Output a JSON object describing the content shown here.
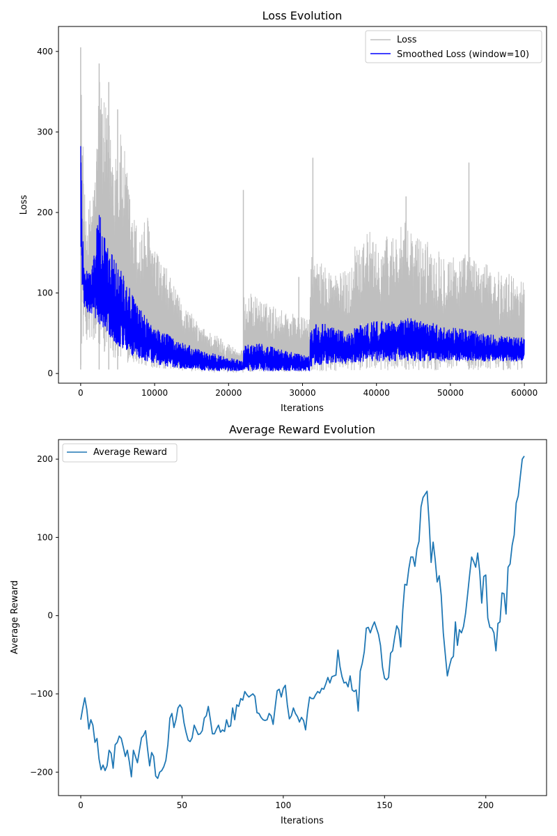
{
  "chart_data": [
    {
      "type": "line",
      "title": "Loss Evolution",
      "xlabel": "Iterations",
      "ylabel": "Loss",
      "xlim": [
        -3000,
        63000
      ],
      "ylim": [
        -12,
        431
      ],
      "xticks": [
        0,
        10000,
        20000,
        30000,
        40000,
        50000,
        60000
      ],
      "yticks": [
        0,
        100,
        200,
        300,
        400
      ],
      "grid": false,
      "legend_position": "top-right",
      "x_range_of_data": [
        0,
        60000
      ],
      "series": [
        {
          "name": "Loss",
          "color": "#bfbfbf",
          "envelope_x": [
            0,
            200,
            500,
            1000,
            1500,
            2000,
            2500,
            3000,
            3500,
            4000,
            4500,
            5000,
            5500,
            6000,
            7000,
            8000,
            9000,
            10000,
            11000,
            12000,
            13000,
            14000,
            15000,
            16000,
            17000,
            18000,
            19000,
            20000,
            21000,
            21999,
            22000,
            23000,
            24000,
            25000,
            26000,
            27000,
            28000,
            29000,
            30000,
            30999,
            31000,
            31500,
            32000,
            33000,
            34000,
            35000,
            36000,
            36999,
            37000,
            38000,
            39000,
            40000,
            41000,
            42000,
            43000,
            44000,
            45000,
            46000,
            47000,
            48000,
            49000,
            50000,
            51000,
            52000,
            53000,
            54000,
            55000,
            56000,
            57000,
            58000,
            59000,
            60000
          ],
          "envelope_high": [
            395,
            330,
            225,
            200,
            240,
            250,
            385,
            340,
            330,
            310,
            300,
            290,
            300,
            275,
            200,
            180,
            200,
            155,
            140,
            125,
            100,
            85,
            75,
            60,
            55,
            50,
            45,
            38,
            32,
            28,
            95,
            100,
            95,
            88,
            85,
            80,
            78,
            75,
            70,
            68,
            140,
            150,
            140,
            135,
            130,
            125,
            130,
            140,
            165,
            175,
            180,
            160,
            170,
            175,
            180,
            190,
            175,
            170,
            165,
            160,
            155,
            150,
            145,
            150,
            145,
            140,
            135,
            130,
            125,
            125,
            120,
            115
          ],
          "envelope_low": [
            5,
            40,
            45,
            40,
            35,
            35,
            30,
            28,
            25,
            22,
            20,
            18,
            15,
            14,
            12,
            10,
            8,
            7,
            6,
            5,
            4,
            3,
            2,
            2,
            2,
            1,
            1,
            1,
            1,
            1,
            2,
            2,
            2,
            2,
            2,
            2,
            2,
            2,
            2,
            2,
            3,
            3,
            3,
            3,
            3,
            3,
            3,
            3,
            4,
            4,
            4,
            4,
            4,
            4,
            4,
            4,
            4,
            4,
            4,
            4,
            4,
            4,
            4,
            4,
            4,
            4,
            4,
            4,
            4,
            4,
            4,
            4
          ],
          "spikes": [
            {
              "x": 0,
              "y": 405
            },
            {
              "x": 2500,
              "y": 385
            },
            {
              "x": 3800,
              "y": 362
            },
            {
              "x": 5000,
              "y": 328
            },
            {
              "x": 22000,
              "y": 228
            },
            {
              "x": 29500,
              "y": 120
            },
            {
              "x": 31400,
              "y": 268
            },
            {
              "x": 44000,
              "y": 220
            },
            {
              "x": 52500,
              "y": 262
            }
          ]
        },
        {
          "name": "Smoothed Loss (window=10)",
          "color": "#0000ff",
          "envelope_x": [
            0,
            200,
            500,
            1000,
            1500,
            2000,
            2500,
            3000,
            3500,
            4000,
            4500,
            5000,
            5500,
            6000,
            7000,
            8000,
            9000,
            10000,
            11000,
            12000,
            13000,
            14000,
            15000,
            16000,
            17000,
            18000,
            19000,
            20000,
            21000,
            21999,
            22000,
            23000,
            24000,
            25000,
            26000,
            27000,
            28000,
            29000,
            30000,
            30999,
            31000,
            32000,
            33000,
            34000,
            35000,
            36000,
            36999,
            37000,
            38000,
            39000,
            40000,
            41000,
            42000,
            43000,
            44000,
            45000,
            46000,
            47000,
            48000,
            49000,
            50000,
            51000,
            52000,
            53000,
            54000,
            55000,
            56000,
            57000,
            58000,
            59000,
            60000
          ],
          "envelope_high": [
            315,
            200,
            140,
            130,
            130,
            175,
            200,
            185,
            165,
            155,
            145,
            140,
            135,
            125,
            100,
            80,
            70,
            60,
            52,
            48,
            42,
            38,
            34,
            30,
            27,
            25,
            22,
            20,
            18,
            15,
            35,
            37,
            38,
            36,
            33,
            30,
            28,
            26,
            24,
            22,
            60,
            65,
            62,
            58,
            55,
            52,
            50,
            60,
            62,
            64,
            65,
            66,
            68,
            68,
            70,
            68,
            66,
            64,
            62,
            60,
            58,
            56,
            55,
            54,
            52,
            50,
            48,
            47,
            46,
            45,
            45
          ],
          "envelope_low": [
            160,
            100,
            80,
            75,
            70,
            65,
            60,
            55,
            50,
            45,
            40,
            35,
            32,
            28,
            22,
            18,
            15,
            12,
            10,
            8,
            6,
            5,
            4,
            4,
            3,
            3,
            3,
            3,
            3,
            3,
            3,
            3,
            3,
            3,
            3,
            3,
            3,
            3,
            3,
            3,
            8,
            10,
            12,
            12,
            12,
            12,
            12,
            14,
            14,
            15,
            15,
            15,
            15,
            15,
            15,
            15,
            15,
            15,
            15,
            15,
            15,
            15,
            15,
            15,
            15,
            15,
            15,
            15,
            15,
            15,
            15
          ]
        }
      ]
    },
    {
      "type": "line",
      "title": "Average Reward Evolution",
      "xlabel": "Iterations",
      "ylabel": "Average Reward",
      "xlim": [
        -11,
        230
      ],
      "ylim": [
        -230,
        225
      ],
      "xticks": [
        0,
        50,
        100,
        150,
        200
      ],
      "yticks": [
        -200,
        -100,
        0,
        100,
        200
      ],
      "grid": false,
      "legend_position": "top-left",
      "series": [
        {
          "name": "Average Reward",
          "color": "#1f77b4",
          "x_start": 0,
          "values": [
            -133,
            -118,
            -105,
            -120,
            -145,
            -133,
            -140,
            -162,
            -157,
            -183,
            -197,
            -191,
            -198,
            -192,
            -172,
            -176,
            -195,
            -165,
            -162,
            -154,
            -157,
            -168,
            -180,
            -172,
            -187,
            -206,
            -172,
            -180,
            -188,
            -172,
            -156,
            -153,
            -147,
            -171,
            -192,
            -175,
            -180,
            -205,
            -208,
            -200,
            -198,
            -193,
            -185,
            -165,
            -131,
            -125,
            -143,
            -133,
            -118,
            -114,
            -118,
            -137,
            -149,
            -159,
            -161,
            -156,
            -140,
            -146,
            -152,
            -151,
            -147,
            -131,
            -128,
            -116,
            -133,
            -151,
            -151,
            -145,
            -140,
            -149,
            -146,
            -148,
            -133,
            -142,
            -141,
            -118,
            -133,
            -114,
            -116,
            -106,
            -108,
            -97,
            -101,
            -104,
            -102,
            -100,
            -103,
            -124,
            -125,
            -130,
            -133,
            -134,
            -133,
            -125,
            -128,
            -139,
            -117,
            -96,
            -94,
            -104,
            -93,
            -89,
            -114,
            -132,
            -128,
            -118,
            -125,
            -129,
            -136,
            -130,
            -134,
            -146,
            -122,
            -104,
            -106,
            -106,
            -101,
            -97,
            -99,
            -93,
            -94,
            -87,
            -79,
            -86,
            -78,
            -77,
            -76,
            -44,
            -65,
            -78,
            -86,
            -85,
            -91,
            -77,
            -95,
            -97,
            -95,
            -122,
            -71,
            -61,
            -46,
            -16,
            -15,
            -22,
            -14,
            -8,
            -16,
            -24,
            -38,
            -66,
            -80,
            -82,
            -79,
            -48,
            -45,
            -28,
            -13,
            -18,
            -40,
            7,
            40,
            39,
            60,
            75,
            75,
            63,
            85,
            95,
            139,
            151,
            155,
            159,
            120,
            68,
            94,
            72,
            43,
            51,
            26,
            -22,
            -50,
            -77,
            -65,
            -55,
            -52,
            -8,
            -38,
            -18,
            -22,
            -14,
            3,
            27,
            52,
            75,
            69,
            62,
            80,
            56,
            16,
            50,
            52,
            -3,
            -15,
            -16,
            -22,
            -45,
            -10,
            -8,
            29,
            28,
            2,
            62,
            66,
            90,
            103,
            144,
            153,
            177,
            200,
            204
          ]
        }
      ]
    }
  ]
}
